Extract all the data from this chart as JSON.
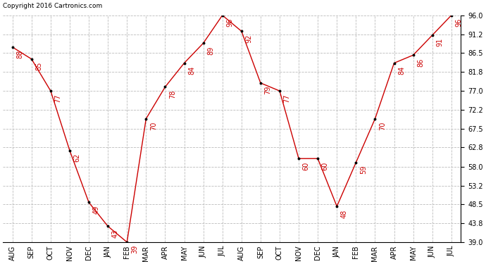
{
  "copyright": "Copyright 2016 Cartronics.com",
  "months": [
    "AUG",
    "SEP",
    "OCT",
    "NOV",
    "DEC",
    "JAN",
    "FEB",
    "MAR",
    "APR",
    "MAY",
    "JUN",
    "JUL",
    "AUG",
    "SEP",
    "OCT",
    "NOV",
    "DEC",
    "JAN",
    "FEB",
    "MAR",
    "APR",
    "MAY",
    "JUN",
    "JUL"
  ],
  "values": [
    88,
    85,
    77,
    62,
    49,
    43,
    39,
    70,
    78,
    84,
    89,
    96,
    92,
    79,
    77,
    60,
    60,
    48,
    59,
    70,
    84,
    86,
    91,
    96
  ],
  "ylim": [
    39.0,
    96.0
  ],
  "yticks": [
    39.0,
    43.8,
    48.5,
    53.2,
    58.0,
    62.8,
    67.5,
    72.2,
    77.0,
    81.8,
    86.5,
    91.2,
    96.0
  ],
  "line_color": "#cc0000",
  "marker_color": "#000000",
  "label_color": "#cc0000",
  "bg_color": "#ffffff",
  "grid_color": "#bbbbbb",
  "legend_bg": "#cc0000",
  "legend_fg": "#ffffff",
  "title_fontsize": 11,
  "label_fontsize": 7,
  "tick_fontsize": 7,
  "copyright_fontsize": 6.5
}
